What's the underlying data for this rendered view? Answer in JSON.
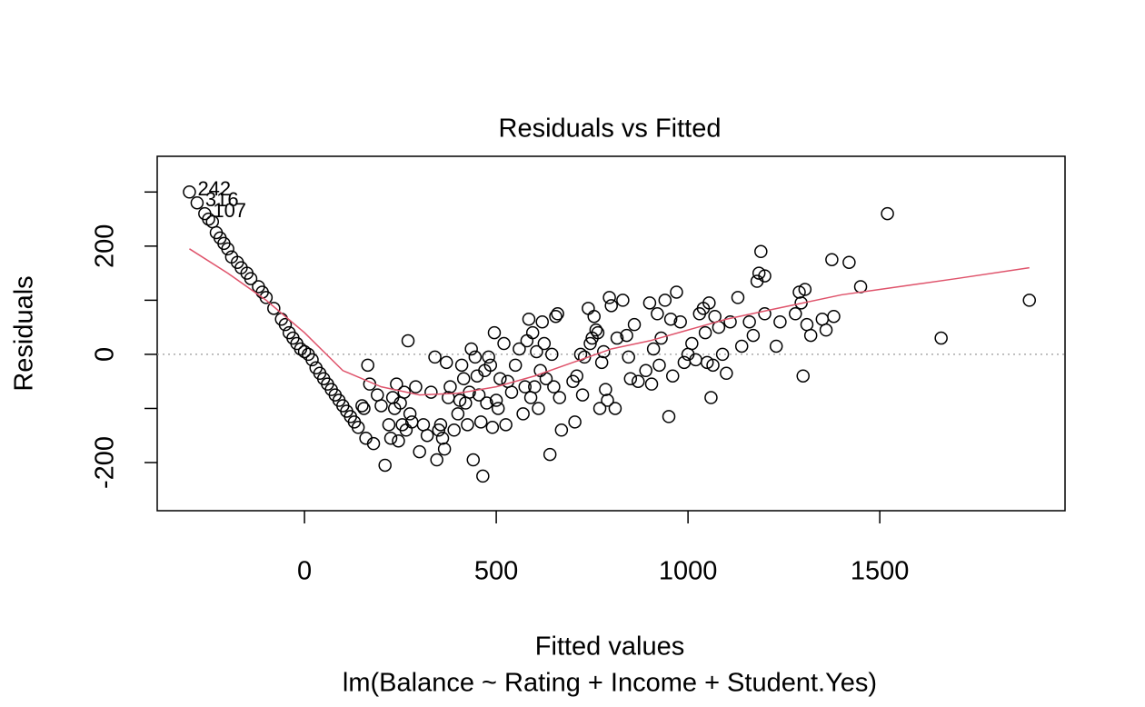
{
  "chart_data": {
    "type": "scatter",
    "title": "Residuals vs Fitted",
    "xlabel": "Fitted values",
    "subtitle": "lm(Balance ~ Rating + Income + Student.Yes)",
    "ylabel": "Residuals",
    "xlim": [
      -384,
      1983
    ],
    "ylim": [
      -289,
      366
    ],
    "xticks": [
      0,
      500,
      1000,
      1500
    ],
    "yticks": [
      -200,
      0,
      200
    ],
    "yminor_ticks": [
      -100,
      100,
      300
    ],
    "hline": 0,
    "color": "#000000",
    "x": [
      -300,
      -280,
      -260,
      -250,
      -240,
      -230,
      -220,
      -210,
      -200,
      -190,
      -175,
      -165,
      -150,
      -140,
      -120,
      -110,
      -100,
      -80,
      -60,
      -50,
      -40,
      -30,
      -20,
      -10,
      0,
      10,
      20,
      30,
      40,
      50,
      60,
      70,
      80,
      90,
      100,
      110,
      120,
      130,
      140,
      150,
      155,
      160,
      165,
      170,
      180,
      190,
      200,
      210,
      220,
      225,
      230,
      235,
      240,
      245,
      250,
      255,
      260,
      265,
      270,
      275,
      280,
      290,
      300,
      310,
      320,
      330,
      340,
      345,
      350,
      355,
      360,
      365,
      370,
      375,
      380,
      390,
      400,
      405,
      410,
      415,
      420,
      425,
      430,
      435,
      440,
      445,
      450,
      455,
      460,
      465,
      470,
      475,
      480,
      485,
      490,
      495,
      500,
      505,
      510,
      520,
      525,
      530,
      540,
      550,
      560,
      570,
      575,
      580,
      585,
      590,
      595,
      600,
      605,
      610,
      615,
      620,
      625,
      630,
      640,
      645,
      650,
      655,
      660,
      665,
      670,
      700,
      705,
      710,
      720,
      725,
      730,
      740,
      745,
      750,
      755,
      760,
      765,
      770,
      775,
      780,
      785,
      790,
      795,
      800,
      810,
      815,
      830,
      840,
      845,
      850,
      860,
      870,
      890,
      900,
      905,
      910,
      920,
      925,
      930,
      940,
      950,
      955,
      960,
      970,
      980,
      990,
      1000,
      1010,
      1020,
      1030,
      1040,
      1045,
      1050,
      1055,
      1060,
      1065,
      1070,
      1080,
      1090,
      1100,
      1110,
      1130,
      1140,
      1160,
      1170,
      1180,
      1185,
      1190,
      1200,
      1200,
      1230,
      1240,
      1280,
      1290,
      1295,
      1300,
      1305,
      1310,
      1320,
      1350,
      1360,
      1375,
      1380,
      1420,
      1450,
      1520,
      1660,
      1890
    ],
    "values": [
      300,
      280,
      260,
      250,
      245,
      225,
      215,
      205,
      195,
      180,
      170,
      160,
      150,
      140,
      125,
      115,
      105,
      85,
      65,
      55,
      40,
      30,
      20,
      10,
      5,
      0,
      -10,
      -25,
      -35,
      -45,
      -55,
      -65,
      -75,
      -85,
      -95,
      -105,
      -115,
      -125,
      -135,
      -95,
      -100,
      -155,
      -20,
      -55,
      -165,
      -75,
      -95,
      -205,
      -130,
      -155,
      -80,
      -100,
      -55,
      -160,
      -90,
      -130,
      -70,
      -140,
      25,
      -110,
      -125,
      -60,
      -180,
      -130,
      -150,
      -70,
      -5,
      -195,
      -140,
      -130,
      -155,
      -175,
      -15,
      -80,
      -60,
      -140,
      -110,
      -85,
      -20,
      -45,
      -90,
      -130,
      -70,
      10,
      -195,
      -5,
      -40,
      -75,
      -125,
      -225,
      -30,
      -90,
      -5,
      -20,
      -135,
      40,
      -85,
      -100,
      -45,
      20,
      -130,
      -50,
      -70,
      -20,
      10,
      -110,
      -60,
      25,
      65,
      -80,
      40,
      -60,
      5,
      -100,
      -30,
      60,
      20,
      -45,
      -185,
      0,
      -60,
      70,
      75,
      -80,
      -140,
      -50,
      -125,
      -40,
      0,
      -75,
      -5,
      85,
      20,
      30,
      70,
      45,
      40,
      -100,
      -15,
      5,
      -65,
      -85,
      105,
      90,
      -100,
      30,
      100,
      35,
      -5,
      -45,
      55,
      -50,
      -30,
      95,
      -55,
      10,
      75,
      -20,
      30,
      100,
      -115,
      65,
      -40,
      115,
      60,
      -15,
      0,
      20,
      -10,
      75,
      85,
      40,
      -15,
      95,
      -80,
      -20,
      70,
      50,
      0,
      -35,
      60,
      105,
      15,
      60,
      35,
      135,
      150,
      190,
      145,
      75,
      15,
      60,
      75,
      115,
      95,
      -40,
      120,
      55,
      35,
      65,
      45,
      175,
      70,
      170,
      125,
      260,
      30,
      100
    ],
    "smooth": {
      "color": "#df536b",
      "x": [
        -300,
        -200,
        -100,
        0,
        100,
        200,
        300,
        400,
        500,
        600,
        700,
        800,
        900,
        1000,
        1100,
        1200,
        1300,
        1400,
        1500,
        1600,
        1700,
        1890
      ],
      "values": [
        195,
        150,
        100,
        40,
        -30,
        -60,
        -75,
        -72,
        -60,
        -40,
        -15,
        10,
        25,
        45,
        65,
        80,
        95,
        110,
        120,
        130,
        140,
        160
      ]
    },
    "annotations": [
      {
        "text": "242",
        "x": -300,
        "y": 300
      },
      {
        "text": "316",
        "x": -280,
        "y": 280
      },
      {
        "text": "107",
        "x": -260,
        "y": 260
      }
    ]
  }
}
